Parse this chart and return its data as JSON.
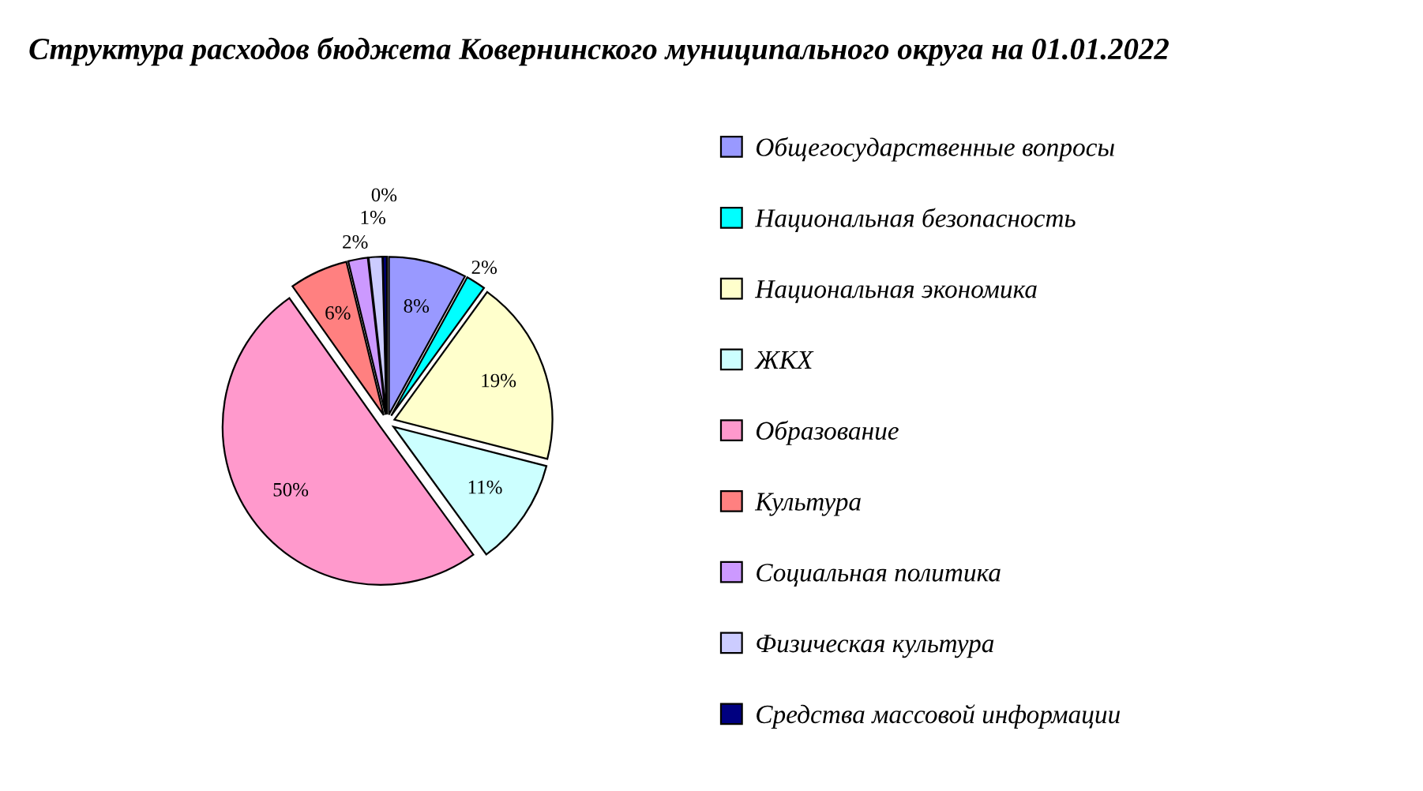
{
  "chart_data": {
    "type": "pie",
    "title": "Структура расходов бюджета Ковернинского муниципального округа на 01.01.2022",
    "categories": [
      "Общегосударственные вопросы",
      "Национальная безопасность",
      "Национальная экономика",
      "ЖКХ",
      "Образование",
      "Культура",
      "Социальная политика",
      "Физическая культура",
      "Средства массовой информации"
    ],
    "values": [
      8,
      2,
      19,
      11,
      50.2,
      6,
      2,
      1.4,
      0.4
    ],
    "value_labels": [
      "8%",
      "2%",
      "19%",
      "11%",
      "50%",
      "6%",
      "2%",
      "1%",
      "0%"
    ],
    "colors": [
      "#9999ff",
      "#00ffff",
      "#ffffcc",
      "#ccffff",
      "#ff99cc",
      "#ff8080",
      "#cc99ff",
      "#ccccff",
      "#000080"
    ],
    "legend": "right"
  }
}
